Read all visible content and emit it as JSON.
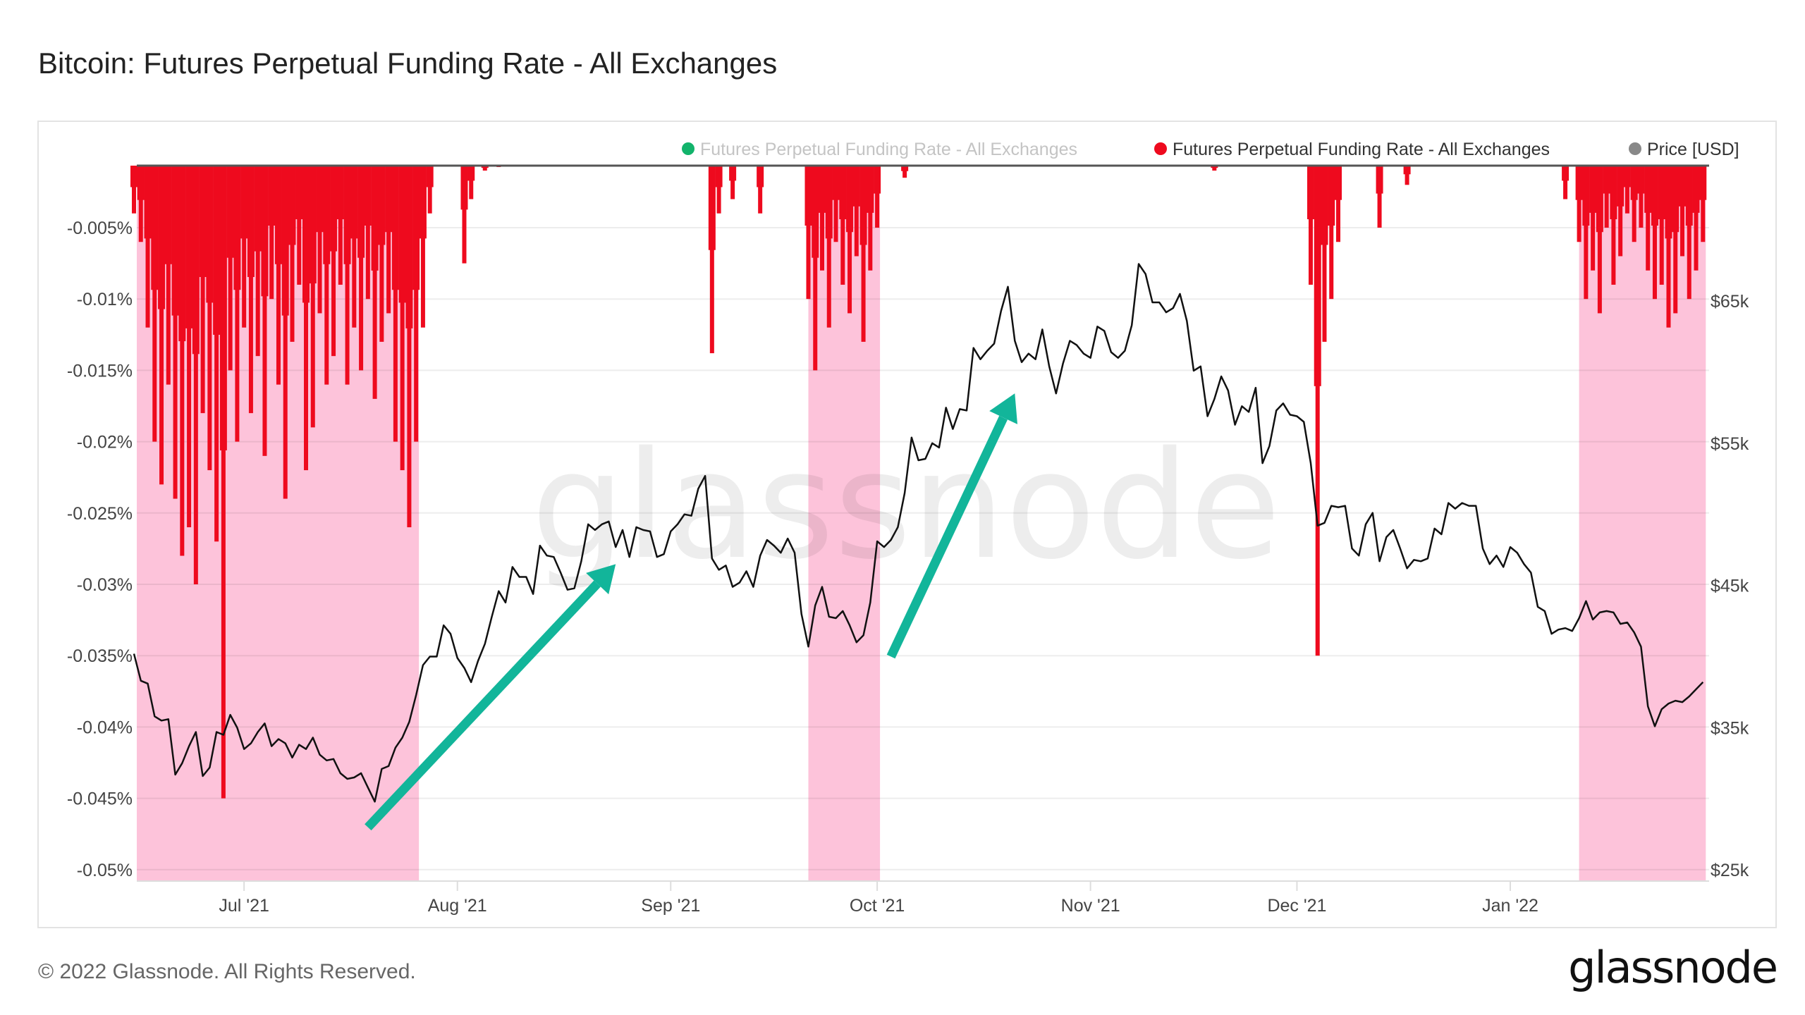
{
  "title": "Bitcoin: Futures Perpetual Funding Rate - All Exchanges",
  "footer": {
    "copyright": "© 2022 Glassnode. All Rights Reserved.",
    "logo": "glassnode"
  },
  "watermark": "glassnode",
  "colors": {
    "funding_positive": "#12b36b",
    "funding_negative": "#ee0a1e",
    "price": "#111111",
    "band": "#fdc3da",
    "arrow": "#12b59a",
    "legend_price": "#888888"
  },
  "chart_data": {
    "type": "bar+line",
    "title": "Bitcoin: Futures Perpetual Funding Rate - All Exchanges",
    "legend": [
      {
        "label": "Futures Perpetual Funding Rate - All Exchanges",
        "color": "#12b36b",
        "muted": true
      },
      {
        "label": "Futures Perpetual Funding Rate - All Exchanges",
        "color": "#ee0a1e",
        "muted": false
      },
      {
        "label": "Price [USD]",
        "color": "#888888",
        "muted": false
      }
    ],
    "legend_position": "top-right",
    "x_range": [
      "2021-06-15",
      "2022-01-29"
    ],
    "x_ticks": [
      {
        "date": "2021-07-01",
        "label": "Jul '21"
      },
      {
        "date": "2021-08-01",
        "label": "Aug '21"
      },
      {
        "date": "2021-09-01",
        "label": "Sep '21"
      },
      {
        "date": "2021-10-01",
        "label": "Oct '21"
      },
      {
        "date": "2021-11-01",
        "label": "Nov '21"
      },
      {
        "date": "2021-12-01",
        "label": "Dec '21"
      },
      {
        "date": "2022-01-01",
        "label": "Jan '22"
      }
    ],
    "y_left": {
      "range": [
        -0.0508,
        -0.0006
      ],
      "unit": "%",
      "ticks": [
        {
          "value": -0.005,
          "label": "-0.005%"
        },
        {
          "value": -0.01,
          "label": "-0.01%"
        },
        {
          "value": -0.015,
          "label": "-0.015%"
        },
        {
          "value": -0.02,
          "label": "-0.02%"
        },
        {
          "value": -0.025,
          "label": "-0.025%"
        },
        {
          "value": -0.03,
          "label": "-0.03%"
        },
        {
          "value": -0.035,
          "label": "-0.035%"
        },
        {
          "value": -0.04,
          "label": "-0.04%"
        },
        {
          "value": -0.045,
          "label": "-0.045%"
        },
        {
          "value": -0.05,
          "label": "-0.05%"
        }
      ]
    },
    "y_right": {
      "range": [
        24.3,
        74.5
      ],
      "unit": "k USD",
      "ticks": [
        {
          "value": 65,
          "label": "$65k"
        },
        {
          "value": 55,
          "label": "$55k"
        },
        {
          "value": 45,
          "label": "$45k"
        },
        {
          "value": 35,
          "label": "$35k"
        },
        {
          "value": 25,
          "label": "$25k"
        }
      ]
    },
    "negative_bands": [
      {
        "start": "2021-06-15",
        "end": "2021-07-26"
      },
      {
        "start": "2021-09-21",
        "end": "2021-10-01"
      },
      {
        "start": "2022-01-11",
        "end": "2022-01-29"
      }
    ],
    "funding_negative": [
      {
        "start": "2021-06-15",
        "values": [
          -0.004,
          -0.006,
          -0.012,
          -0.02,
          -0.023,
          -0.016,
          -0.024,
          -0.028,
          -0.026,
          -0.03,
          -0.018,
          -0.022,
          -0.027,
          -0.045,
          -0.015,
          -0.02,
          -0.012,
          -0.018,
          -0.014,
          -0.021,
          -0.01,
          -0.016,
          -0.024,
          -0.013,
          -0.009,
          -0.022,
          -0.019,
          -0.011,
          -0.016,
          -0.014,
          -0.009,
          -0.016,
          -0.012,
          -0.015,
          -0.01,
          -0.017,
          -0.013,
          -0.011,
          -0.02,
          -0.022,
          -0.026,
          -0.02,
          -0.012,
          -0.004
        ]
      },
      {
        "start": "2021-08-02",
        "values": [
          -0.0075,
          -0.003,
          0,
          -0.001,
          0,
          -0.0005
        ]
      },
      {
        "start": "2021-09-07",
        "values": [
          -0.0138,
          -0.004,
          0,
          -0.003
        ]
      },
      {
        "start": "2021-09-14",
        "values": [
          -0.004
        ]
      },
      {
        "start": "2021-09-21",
        "values": [
          -0.01,
          -0.015,
          -0.008,
          -0.012,
          -0.006,
          -0.009,
          -0.011,
          -0.007,
          -0.013,
          -0.008,
          -0.005
        ]
      },
      {
        "start": "2021-10-05",
        "values": [
          -0.0015
        ]
      },
      {
        "start": "2021-11-19",
        "values": [
          -0.001
        ]
      },
      {
        "start": "2021-12-03",
        "values": [
          -0.009,
          -0.035,
          -0.013,
          -0.01,
          -0.006
        ]
      },
      {
        "start": "2021-12-13",
        "values": [
          -0.005
        ]
      },
      {
        "start": "2021-12-17",
        "values": [
          -0.002
        ]
      },
      {
        "start": "2022-01-09",
        "values": [
          -0.003,
          0,
          -0.006,
          -0.01,
          -0.008,
          -0.011,
          -0.005,
          -0.009,
          -0.007,
          -0.004,
          -0.006,
          -0.005,
          -0.008,
          -0.01,
          -0.009,
          -0.012,
          -0.011,
          -0.007,
          -0.01,
          -0.008,
          -0.006
        ]
      }
    ],
    "price_k_usd": {
      "start": "2021-06-15",
      "values": [
        40.2,
        38.3,
        38.1,
        35.8,
        35.5,
        35.6,
        31.7,
        32.5,
        33.7,
        34.7,
        31.6,
        32.2,
        34.7,
        34.5,
        35.9,
        35.0,
        33.5,
        33.9,
        34.7,
        35.3,
        33.7,
        34.2,
        33.9,
        32.9,
        33.8,
        33.5,
        34.3,
        33.1,
        32.7,
        32.8,
        31.8,
        31.4,
        31.5,
        31.8,
        30.8,
        29.8,
        32.1,
        32.3,
        33.6,
        34.3,
        35.4,
        37.3,
        39.4,
        40.0,
        40.0,
        42.2,
        41.6,
        39.9,
        39.2,
        38.2,
        39.7,
        40.9,
        42.8,
        44.6,
        43.8,
        46.3,
        45.6,
        45.6,
        44.4,
        47.8,
        47.1,
        47.0,
        45.9,
        44.7,
        44.8,
        46.7,
        49.3,
        48.9,
        49.3,
        49.5,
        47.7,
        48.9,
        47.0,
        49.1,
        48.9,
        48.8,
        47.0,
        47.2,
        48.8,
        49.3,
        50.0,
        49.9,
        51.8,
        52.7,
        46.9,
        46.1,
        46.4,
        44.9,
        45.2,
        46.0,
        44.9,
        47.1,
        48.2,
        47.8,
        47.3,
        48.3,
        47.3,
        43.0,
        40.7,
        43.6,
        44.9,
        42.8,
        42.7,
        43.2,
        42.2,
        41.0,
        41.5,
        43.8,
        48.1,
        47.7,
        48.2,
        49.1,
        51.5,
        55.4,
        53.8,
        53.9,
        55.0,
        54.7,
        57.5,
        56.0,
        57.4,
        57.3,
        61.7,
        60.9,
        61.5,
        62.0,
        64.3,
        66.0,
        62.2,
        60.7,
        61.3,
        60.9,
        63.0,
        60.4,
        58.5,
        60.6,
        62.2,
        61.9,
        61.3,
        61.0,
        63.2,
        62.9,
        61.4,
        61.0,
        61.5,
        63.3,
        67.6,
        66.9,
        64.9,
        64.9,
        64.2,
        64.5,
        65.5,
        63.6,
        60.1,
        60.4,
        56.9,
        58.1,
        59.7,
        58.7,
        56.3,
        57.6,
        57.2,
        58.9,
        53.6,
        54.8,
        57.3,
        57.8,
        57.0,
        56.9,
        56.5,
        53.6,
        49.2,
        49.4,
        50.6,
        50.5,
        50.6,
        47.6,
        47.1,
        49.3,
        50.1,
        46.7,
        48.4,
        48.9,
        47.6,
        46.2,
        46.8,
        46.7,
        46.9,
        49.0,
        48.6,
        50.8,
        50.4,
        50.8,
        50.6,
        50.6,
        47.6,
        46.5,
        47.1,
        46.3,
        47.7,
        47.3,
        46.5,
        45.9,
        43.5,
        43.2,
        41.6,
        41.9,
        42.0,
        41.8,
        42.7,
        43.9,
        42.6,
        43.1,
        43.2,
        43.1,
        42.3,
        42.4,
        41.7,
        40.7,
        36.5,
        35.1,
        36.3,
        36.7,
        36.9,
        36.8,
        37.2,
        37.7,
        38.2
      ]
    },
    "annotations": [
      {
        "type": "arrow",
        "from": {
          "date": "2021-07-19",
          "price_k": 28.0
        },
        "to": {
          "date": "2021-08-24",
          "price_k": 46.5
        }
      },
      {
        "type": "arrow",
        "from": {
          "date": "2021-10-03",
          "price_k": 40.0
        },
        "to": {
          "date": "2021-10-21",
          "price_k": 58.5
        }
      }
    ]
  }
}
